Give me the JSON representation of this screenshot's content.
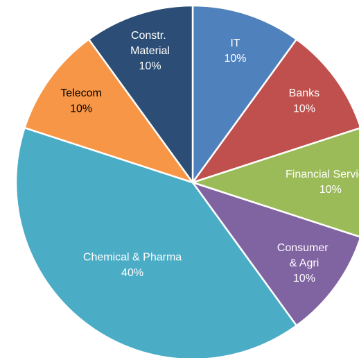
{
  "chart_data": {
    "type": "pie",
    "categories": [
      "IT",
      "Banks",
      "Financial Services",
      "Consumer & Agri",
      "Chemical & Pharma",
      "Telecom",
      "Constr. Material"
    ],
    "values": [
      10,
      10,
      10,
      10,
      40,
      10,
      10
    ],
    "value_labels": [
      "10%",
      "10%",
      "10%",
      "10%",
      "40%",
      "10%",
      "10%"
    ],
    "colors": [
      "#4f81bd",
      "#c0504d",
      "#9bbb59",
      "#8064a2",
      "#4bacc6",
      "#f79646",
      "#2c4d75"
    ]
  }
}
